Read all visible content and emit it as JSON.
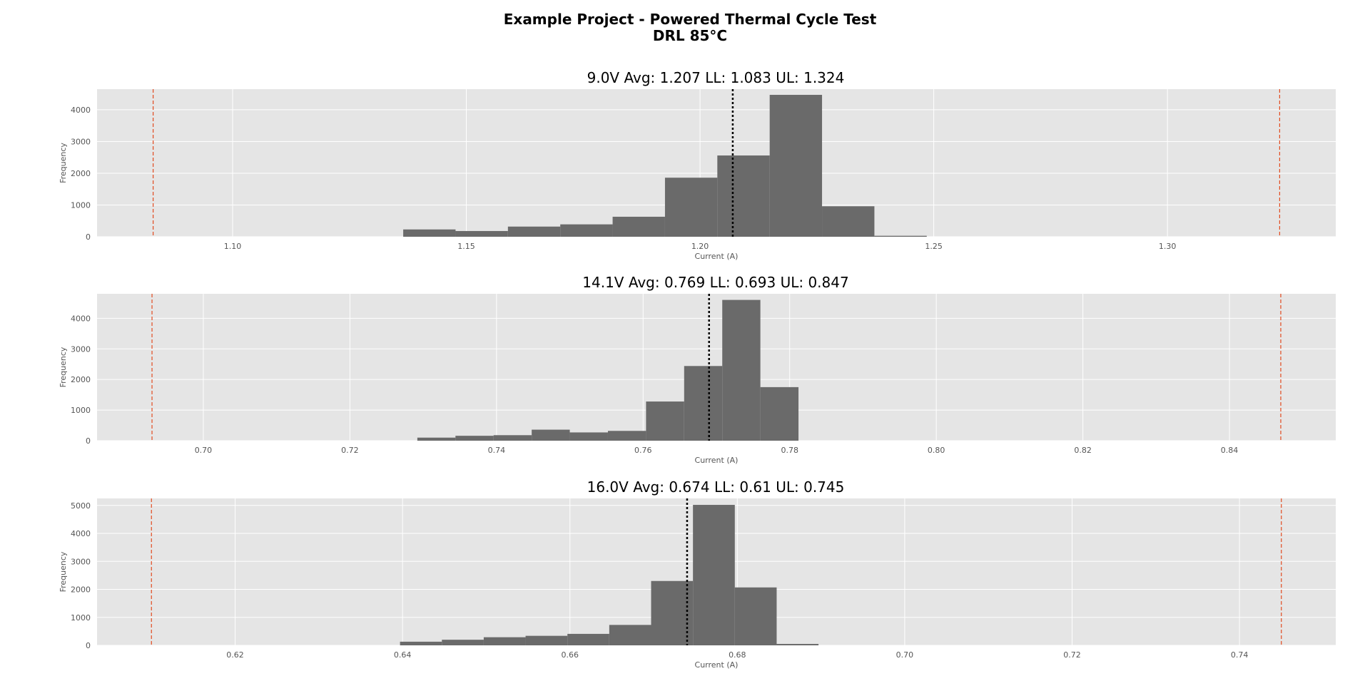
{
  "figure": {
    "title_line1": "Example Project - Powered Thermal Cycle Test",
    "title_line2": "DRL 85°C"
  },
  "colors": {
    "panel_bg": "#e5e5e5",
    "grid": "#ffffff",
    "bar": "#6a6a6a",
    "limit_line": "#e24a1f",
    "avg_line": "#000000",
    "tick_text": "#555555"
  },
  "chart_data": [
    {
      "type": "bar",
      "title": "9.0V  Avg: 1.207  LL: 1.083  UL: 1.324",
      "xlabel": "Current (A)",
      "ylabel": "Frequency",
      "xlim": [
        1.071,
        1.336
      ],
      "ylim": [
        0,
        4650
      ],
      "xticks": [
        1.1,
        1.15,
        1.2,
        1.25,
        1.3
      ],
      "xtick_labels": [
        "1.10",
        "1.15",
        "1.20",
        "1.25",
        "1.30"
      ],
      "yticks": [
        0,
        1000,
        2000,
        3000,
        4000
      ],
      "ytick_labels": [
        "0",
        "1000",
        "2000",
        "3000",
        "4000"
      ],
      "avg": 1.207,
      "ll": 1.083,
      "ul": 1.324,
      "bin_edges": [
        1.1365,
        1.1477,
        1.1589,
        1.1701,
        1.1813,
        1.1925,
        1.2037,
        1.2149,
        1.2261,
        1.2373,
        1.2485
      ],
      "counts": [
        230,
        180,
        320,
        390,
        630,
        1860,
        2560,
        4470,
        960,
        30
      ]
    },
    {
      "type": "bar",
      "title": "14.1V  Avg: 0.769  LL: 0.693  UL: 0.847",
      "xlabel": "Current (A)",
      "ylabel": "Frequency",
      "xlim": [
        0.6855,
        0.8545
      ],
      "ylim": [
        0,
        4800
      ],
      "xticks": [
        0.7,
        0.72,
        0.74,
        0.76,
        0.78,
        0.8,
        0.82,
        0.84
      ],
      "xtick_labels": [
        "0.70",
        "0.72",
        "0.74",
        "0.76",
        "0.78",
        "0.80",
        "0.82",
        "0.84"
      ],
      "yticks": [
        0,
        1000,
        2000,
        3000,
        4000
      ],
      "ytick_labels": [
        "0",
        "1000",
        "2000",
        "3000",
        "4000"
      ],
      "avg": 0.769,
      "ll": 0.693,
      "ul": 0.847,
      "bin_edges": [
        0.7292,
        0.7344,
        0.7396,
        0.7448,
        0.75,
        0.7552,
        0.7604,
        0.7656,
        0.7708,
        0.776,
        0.7812
      ],
      "counts": [
        100,
        160,
        180,
        360,
        270,
        320,
        1280,
        2440,
        4600,
        1750
      ]
    },
    {
      "type": "bar",
      "title": "16.0V  Avg: 0.674  LL: 0.61  UL: 0.745",
      "xlabel": "Current (A)",
      "ylabel": "Frequency",
      "xlim": [
        0.6035,
        0.7515
      ],
      "ylim": [
        0,
        5250
      ],
      "xticks": [
        0.62,
        0.64,
        0.66,
        0.68,
        0.7,
        0.72,
        0.74
      ],
      "xtick_labels": [
        "0.62",
        "0.64",
        "0.66",
        "0.68",
        "0.70",
        "0.72",
        "0.74"
      ],
      "yticks": [
        0,
        1000,
        2000,
        3000,
        4000,
        5000
      ],
      "ytick_labels": [
        "0",
        "1000",
        "2000",
        "3000",
        "4000",
        "5000"
      ],
      "avg": 0.674,
      "ll": 0.61,
      "ul": 0.745,
      "bin_edges": [
        0.6397,
        0.6447,
        0.6497,
        0.6547,
        0.6597,
        0.6647,
        0.6697,
        0.6747,
        0.6797,
        0.6847,
        0.6897
      ],
      "counts": [
        130,
        200,
        290,
        340,
        410,
        730,
        2300,
        5020,
        2070,
        50
      ]
    }
  ]
}
